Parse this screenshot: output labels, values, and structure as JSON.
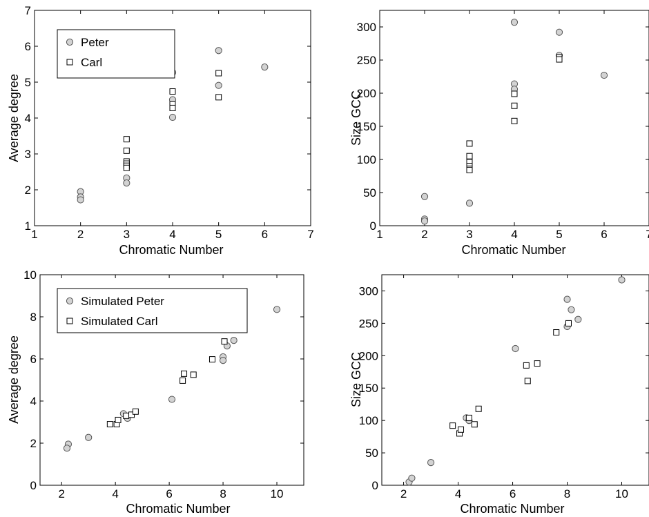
{
  "chart_data": [
    {
      "type": "scatter",
      "xlabel": "Chromatic Number",
      "ylabel": "Average degree",
      "xlim": [
        1,
        7
      ],
      "ylim": [
        1,
        7
      ],
      "xticks": [
        "1",
        "2",
        "3",
        "4",
        "5",
        "6",
        "7"
      ],
      "yticks": [
        "1",
        "2",
        "3",
        "4",
        "5",
        "6",
        "7"
      ],
      "legend_position": "top-left",
      "series": [
        {
          "name": "Peter",
          "marker": "circle",
          "color": "#d3d3d3",
          "points": [
            [
              2,
              1.95
            ],
            [
              2,
              1.8
            ],
            [
              2,
              1.72
            ],
            [
              3,
              2.33
            ],
            [
              3,
              2.19
            ],
            [
              4,
              5.27
            ],
            [
              4,
              4.51
            ],
            [
              4,
              4.02
            ],
            [
              5,
              5.88
            ],
            [
              5,
              4.91
            ],
            [
              6,
              5.42
            ]
          ]
        },
        {
          "name": "Carl",
          "marker": "square",
          "color": "#ffffff",
          "points": [
            [
              3,
              3.41
            ],
            [
              3,
              3.09
            ],
            [
              3,
              2.79
            ],
            [
              3,
              2.73
            ],
            [
              3,
              2.67
            ],
            [
              3,
              2.61
            ],
            [
              4,
              4.74
            ],
            [
              4,
              4.38
            ],
            [
              4,
              4.28
            ],
            [
              5,
              5.25
            ],
            [
              5,
              4.58
            ]
          ]
        }
      ]
    },
    {
      "type": "scatter",
      "xlabel": "Chromatic Number",
      "ylabel": "Size GCC",
      "xlim": [
        1,
        7
      ],
      "ylim": [
        0,
        325
      ],
      "xticks": [
        "1",
        "2",
        "3",
        "4",
        "5",
        "6",
        "7"
      ],
      "yticks": [
        "0",
        "50",
        "100",
        "150",
        "200",
        "250",
        "300"
      ],
      "legend_position": "none",
      "series": [
        {
          "name": "Peter",
          "marker": "circle",
          "color": "#d3d3d3",
          "points": [
            [
              2,
              44
            ],
            [
              2,
              10
            ],
            [
              2,
              7
            ],
            [
              3,
              34
            ],
            [
              4,
              307
            ],
            [
              4,
              214
            ],
            [
              4,
              206
            ],
            [
              5,
              292
            ],
            [
              5,
              257
            ],
            [
              6,
              227
            ]
          ]
        },
        {
          "name": "Carl",
          "marker": "square",
          "color": "#ffffff",
          "points": [
            [
              3,
              124
            ],
            [
              3,
              105
            ],
            [
              3,
              96
            ],
            [
              3,
              90
            ],
            [
              3,
              86
            ],
            [
              3,
              84
            ],
            [
              4,
              199
            ],
            [
              4,
              181
            ],
            [
              4,
              158
            ],
            [
              5,
              254
            ],
            [
              5,
              251
            ]
          ]
        }
      ]
    },
    {
      "type": "scatter",
      "xlabel": "Chromatic Number",
      "ylabel": "Average degree",
      "xlim": [
        1.2,
        11
      ],
      "ylim": [
        0,
        10
      ],
      "xticks": [
        "2",
        "4",
        "6",
        "8",
        "10"
      ],
      "yticks": [
        "0",
        "2",
        "4",
        "6",
        "8",
        "10"
      ],
      "legend_position": "top-left",
      "series": [
        {
          "name": "Simulated Peter",
          "marker": "circle",
          "color": "#d3d3d3",
          "points": [
            [
              2.25,
              1.95
            ],
            [
              2.2,
              1.76
            ],
            [
              3.0,
              2.27
            ],
            [
              4.3,
              3.4
            ],
            [
              4.45,
              3.18
            ],
            [
              6.1,
              4.08
            ],
            [
              8.0,
              6.1
            ],
            [
              8.0,
              5.93
            ],
            [
              8.15,
              6.62
            ],
            [
              8.4,
              6.88
            ],
            [
              10.0,
              8.35
            ]
          ]
        },
        {
          "name": "Simulated Carl",
          "marker": "square",
          "color": "#ffffff",
          "points": [
            [
              3.8,
              2.9
            ],
            [
              4.05,
              2.9
            ],
            [
              4.1,
              3.1
            ],
            [
              4.4,
              3.3
            ],
            [
              4.6,
              3.35
            ],
            [
              4.75,
              3.5
            ],
            [
              6.5,
              4.97
            ],
            [
              6.55,
              5.3
            ],
            [
              6.9,
              5.25
            ],
            [
              7.6,
              5.98
            ],
            [
              8.05,
              6.83
            ]
          ]
        }
      ]
    },
    {
      "type": "scatter",
      "xlabel": "Chromatic Number",
      "ylabel": "Size GCC",
      "xlim": [
        1.2,
        11
      ],
      "ylim": [
        0,
        325
      ],
      "xticks": [
        "2",
        "4",
        "6",
        "8",
        "10"
      ],
      "yticks": [
        "0",
        "50",
        "100",
        "150",
        "200",
        "250",
        "300"
      ],
      "legend_position": "none",
      "series": [
        {
          "name": "Simulated Peter",
          "marker": "circle",
          "color": "#d3d3d3",
          "points": [
            [
              2.2,
              5
            ],
            [
              2.3,
              11
            ],
            [
              3.0,
              35
            ],
            [
              4.3,
              104
            ],
            [
              4.4,
              100
            ],
            [
              6.1,
              211
            ],
            [
              8.0,
              287
            ],
            [
              8.0,
              245
            ],
            [
              8.15,
              271
            ],
            [
              8.4,
              256
            ],
            [
              10.0,
              317
            ]
          ]
        },
        {
          "name": "Simulated Carl",
          "marker": "square",
          "color": "#ffffff",
          "points": [
            [
              3.8,
              92
            ],
            [
              4.05,
              80
            ],
            [
              4.1,
              86
            ],
            [
              4.4,
              104
            ],
            [
              4.6,
              94
            ],
            [
              4.75,
              118
            ],
            [
              6.5,
              185
            ],
            [
              6.55,
              161
            ],
            [
              6.9,
              188
            ],
            [
              7.6,
              236
            ],
            [
              8.05,
              250
            ]
          ]
        }
      ]
    }
  ]
}
